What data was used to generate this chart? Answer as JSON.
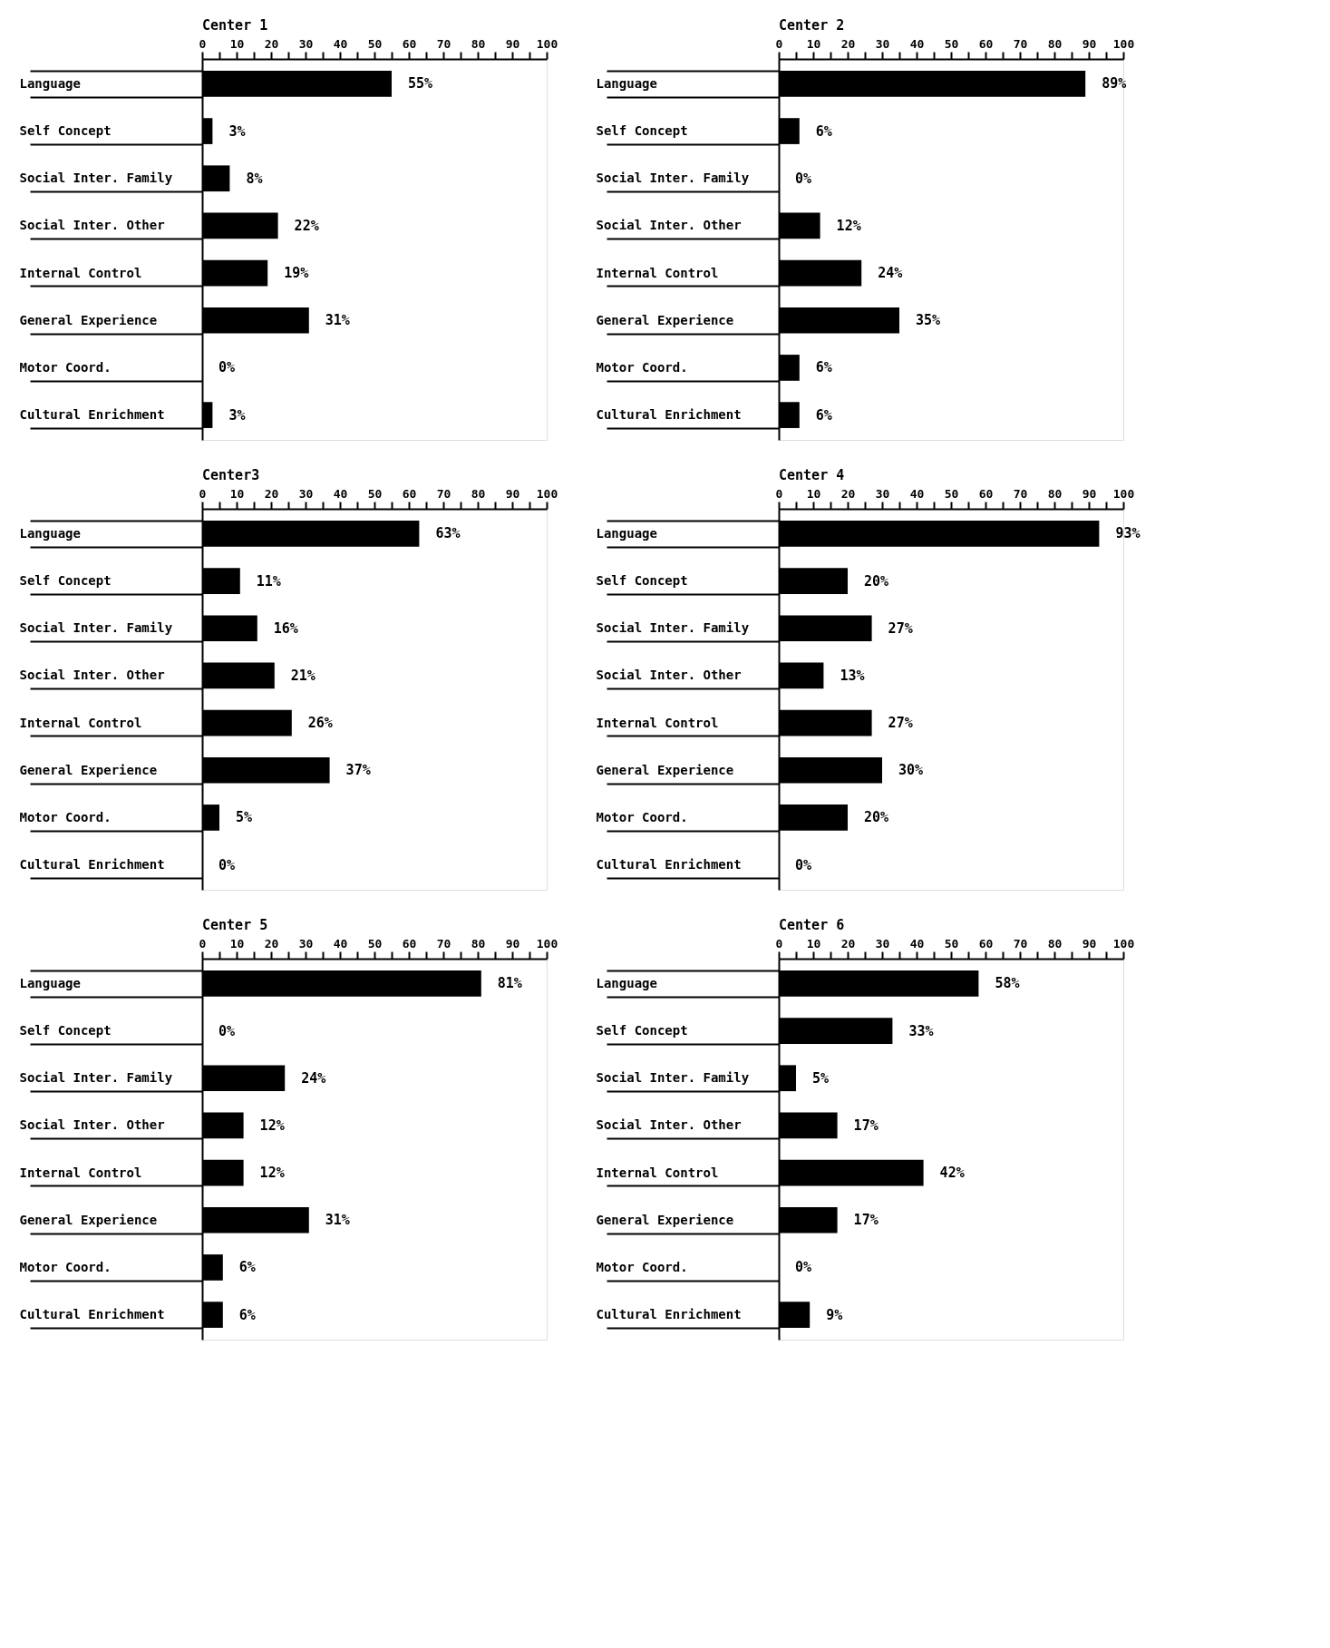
{
  "chart_data": [
    {
      "type": "bar",
      "orientation": "horizontal",
      "title": "Center 1",
      "color": "#000000",
      "xlim": [
        0,
        100
      ],
      "xticks": [
        0,
        {
          "value": 5,
          "label": null
        },
        10,
        {
          "value": 15,
          "label": null
        },
        20,
        {
          "value": 25,
          "label": null
        },
        30,
        {
          "value": 35,
          "label": null
        },
        40,
        {
          "value": 45,
          "label": null
        },
        50,
        {
          "value": 55,
          "label": null
        },
        60,
        {
          "value": 65,
          "label": null
        },
        70,
        {
          "value": 75,
          "label": null
        },
        80,
        {
          "value": 85,
          "label": null
        },
        90,
        {
          "value": 95,
          "label": null
        },
        100
      ],
      "categories": [
        "Language",
        "Self Concept",
        "Social Inter. Family",
        "Social Inter. Other",
        "Internal Control",
        "General Experience",
        "Motor Coord.",
        "Cultural Enrichment"
      ],
      "values": [
        55,
        3,
        8,
        22,
        19,
        31,
        0,
        3
      ],
      "value_labels": [
        "55%",
        "3%",
        "8%",
        "22%",
        "19%",
        "31%",
        "0%",
        "3%"
      ]
    },
    {
      "type": "bar",
      "orientation": "horizontal",
      "title": "Center 2",
      "color": "#000000",
      "xlim": [
        0,
        100
      ],
      "xticks": [
        0,
        {
          "value": 5,
          "label": null
        },
        10,
        {
          "value": 15,
          "label": null
        },
        20,
        {
          "value": 25,
          "label": null
        },
        30,
        {
          "value": 35,
          "label": null
        },
        40,
        {
          "value": 45,
          "label": null
        },
        50,
        {
          "value": 55,
          "label": null
        },
        60,
        {
          "value": 65,
          "label": null
        },
        70,
        {
          "value": 75,
          "label": null
        },
        80,
        {
          "value": 85,
          "label": null
        },
        90,
        {
          "value": 95,
          "label": null
        },
        100
      ],
      "categories": [
        "Language",
        "Self Concept",
        "Social Inter. Family",
        "Social Inter. Other",
        "Internal Control",
        "General Experience",
        "Motor Coord.",
        "Cultural Enrichment"
      ],
      "values": [
        89,
        6,
        0,
        12,
        24,
        35,
        6,
        6
      ],
      "value_labels": [
        "89%",
        "6%",
        "0%",
        "12%",
        "24%",
        "35%",
        "6%",
        "6%"
      ]
    },
    {
      "type": "bar",
      "orientation": "horizontal",
      "title": "Center3",
      "color": "#000000",
      "xlim": [
        0,
        100
      ],
      "xticks": [
        0,
        {
          "value": 5,
          "label": null
        },
        10,
        {
          "value": 15,
          "label": null
        },
        20,
        {
          "value": 25,
          "label": null
        },
        30,
        {
          "value": 35,
          "label": null
        },
        40,
        {
          "value": 45,
          "label": null
        },
        50,
        {
          "value": 55,
          "label": null
        },
        60,
        {
          "value": 65,
          "label": null
        },
        70,
        {
          "value": 75,
          "label": null
        },
        80,
        {
          "value": 85,
          "label": null
        },
        90,
        {
          "value": 95,
          "label": null
        },
        100
      ],
      "categories": [
        "Language",
        "Self Concept",
        "Social Inter. Family",
        "Social Inter. Other",
        "Internal Control",
        "General Experience",
        "Motor Coord.",
        "Cultural Enrichment"
      ],
      "values": [
        63,
        11,
        16,
        21,
        26,
        37,
        5,
        0
      ],
      "value_labels": [
        "63%",
        "11%",
        "16%",
        "21%",
        "26%",
        "37%",
        "5%",
        "0%"
      ]
    },
    {
      "type": "bar",
      "orientation": "horizontal",
      "title": "Center 4",
      "color": "#000000",
      "xlim": [
        0,
        100
      ],
      "xticks": [
        0,
        {
          "value": 5,
          "label": null
        },
        10,
        {
          "value": 15,
          "label": null
        },
        20,
        {
          "value": 25,
          "label": null
        },
        30,
        {
          "value": 35,
          "label": null
        },
        40,
        {
          "value": 45,
          "label": null
        },
        50,
        {
          "value": 55,
          "label": null
        },
        60,
        {
          "value": 65,
          "label": null
        },
        70,
        {
          "value": 75,
          "label": null
        },
        80,
        {
          "value": 85,
          "label": null
        },
        90,
        {
          "value": 95,
          "label": null
        },
        100
      ],
      "categories": [
        "Language",
        "Self Concept",
        "Social Inter. Family",
        "Social Inter. Other",
        "Internal Control",
        "General Experience",
        "Motor Coord.",
        "Cultural Enrichment"
      ],
      "values": [
        93,
        20,
        27,
        13,
        27,
        30,
        20,
        0
      ],
      "value_labels": [
        "93%",
        "20%",
        "27%",
        "13%",
        "27%",
        "30%",
        "20%",
        "0%"
      ]
    },
    {
      "type": "bar",
      "orientation": "horizontal",
      "title": "Center 5",
      "color": "#000000",
      "xlim": [
        0,
        100
      ],
      "xticks": [
        0,
        {
          "value": 5,
          "label": null
        },
        10,
        {
          "value": 15,
          "label": null
        },
        20,
        {
          "value": 25,
          "label": null
        },
        30,
        {
          "value": 35,
          "label": null
        },
        40,
        {
          "value": 45,
          "label": null
        },
        50,
        {
          "value": 55,
          "label": null
        },
        60,
        {
          "value": 65,
          "label": null
        },
        70,
        {
          "value": 75,
          "label": null
        },
        80,
        {
          "value": 85,
          "label": null
        },
        90,
        {
          "value": 95,
          "label": null
        },
        100
      ],
      "categories": [
        "Language",
        "Self Concept",
        "Social Inter. Family",
        "Social Inter. Other",
        "Internal Control",
        "General Experience",
        "Motor Coord.",
        "Cultural Enrichment"
      ],
      "values": [
        81,
        0,
        24,
        12,
        12,
        31,
        6,
        6
      ],
      "value_labels": [
        "81%",
        "0%",
        "24%",
        "12%",
        "12%",
        "31%",
        "6%",
        "6%"
      ]
    },
    {
      "type": "bar",
      "orientation": "horizontal",
      "title": "Center 6",
      "color": "#000000",
      "xlim": [
        0,
        100
      ],
      "xticks": [
        0,
        {
          "value": 5,
          "label": null
        },
        10,
        {
          "value": 15,
          "label": null
        },
        20,
        {
          "value": 25,
          "label": null
        },
        30,
        {
          "value": 35,
          "label": null
        },
        40,
        {
          "value": 45,
          "label": null
        },
        50,
        {
          "value": 55,
          "label": null
        },
        60,
        {
          "value": 65,
          "label": null
        },
        70,
        {
          "value": 75,
          "label": null
        },
        80,
        {
          "value": 85,
          "label": null
        },
        90,
        {
          "value": 95,
          "label": null
        },
        100
      ],
      "categories": [
        "Language",
        "Self Concept",
        "Social Inter. Family",
        "Social Inter. Other",
        "Internal Control",
        "General Experience",
        "Motor Coord.",
        "Cultural Enrichment"
      ],
      "values": [
        58,
        33,
        5,
        17,
        42,
        17,
        0,
        9
      ],
      "value_labels": [
        "58%",
        "33%",
        "5%",
        "17%",
        "42%",
        "17%",
        "0%",
        "9%"
      ]
    }
  ]
}
